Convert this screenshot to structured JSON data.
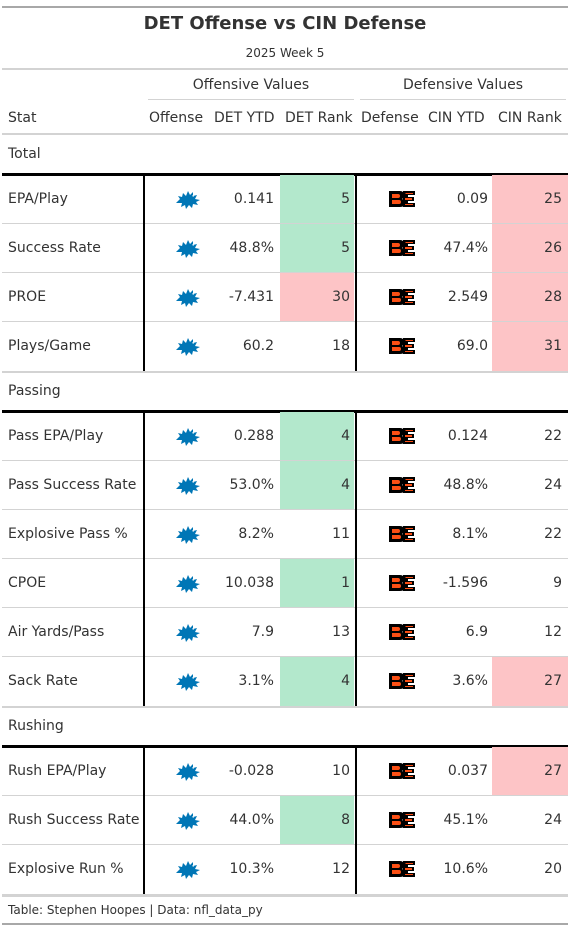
{
  "header": {
    "title": "DET Offense vs CIN Defense",
    "subtitle": "2025 Week 5"
  },
  "spanners": {
    "offense": "Offensive Values",
    "defense": "Defensive Values"
  },
  "columns": {
    "stat": "Stat",
    "offense": "Offense",
    "det_ytd": "DET YTD",
    "det_rank": "DET Rank",
    "defense": "Defense",
    "cin_ytd": "CIN YTD",
    "cin_rank": "CIN Rank"
  },
  "colors": {
    "good": "#b3e8cc",
    "bad": "#fdc4c6",
    "lions_blue": "#0076b6",
    "bengals_orange": "#fb4f14"
  },
  "icons": {
    "offense_logo": "lions-logo-icon",
    "defense_logo": "bengals-logo-icon"
  },
  "groups": [
    {
      "label": "Total",
      "rows": [
        {
          "stat": "EPA/Play",
          "det_ytd": "0.141",
          "det_rank": "5",
          "det_shade": "good",
          "cin_ytd": "0.09",
          "cin_rank": "25",
          "cin_shade": "bad"
        },
        {
          "stat": "Success Rate",
          "det_ytd": "48.8%",
          "det_rank": "5",
          "det_shade": "good",
          "cin_ytd": "47.4%",
          "cin_rank": "26",
          "cin_shade": "bad"
        },
        {
          "stat": "PROE",
          "det_ytd": "-7.431",
          "det_rank": "30",
          "det_shade": "bad",
          "cin_ytd": "2.549",
          "cin_rank": "28",
          "cin_shade": "bad"
        },
        {
          "stat": "Plays/Game",
          "det_ytd": "60.2",
          "det_rank": "18",
          "det_shade": "",
          "cin_ytd": "69.0",
          "cin_rank": "31",
          "cin_shade": "bad"
        }
      ]
    },
    {
      "label": "Passing",
      "rows": [
        {
          "stat": "Pass EPA/Play",
          "det_ytd": "0.288",
          "det_rank": "4",
          "det_shade": "good",
          "cin_ytd": "0.124",
          "cin_rank": "22",
          "cin_shade": ""
        },
        {
          "stat": "Pass Success Rate",
          "det_ytd": "53.0%",
          "det_rank": "4",
          "det_shade": "good",
          "cin_ytd": "48.8%",
          "cin_rank": "24",
          "cin_shade": ""
        },
        {
          "stat": "Explosive Pass %",
          "det_ytd": "8.2%",
          "det_rank": "11",
          "det_shade": "",
          "cin_ytd": "8.1%",
          "cin_rank": "22",
          "cin_shade": ""
        },
        {
          "stat": "CPOE",
          "det_ytd": "10.038",
          "det_rank": "1",
          "det_shade": "good",
          "cin_ytd": "-1.596",
          "cin_rank": "9",
          "cin_shade": ""
        },
        {
          "stat": "Air Yards/Pass",
          "det_ytd": "7.9",
          "det_rank": "13",
          "det_shade": "",
          "cin_ytd": "6.9",
          "cin_rank": "12",
          "cin_shade": ""
        },
        {
          "stat": "Sack Rate",
          "det_ytd": "3.1%",
          "det_rank": "4",
          "det_shade": "good",
          "cin_ytd": "3.6%",
          "cin_rank": "27",
          "cin_shade": "bad"
        }
      ]
    },
    {
      "label": "Rushing",
      "rows": [
        {
          "stat": "Rush EPA/Play",
          "det_ytd": "-0.028",
          "det_rank": "10",
          "det_shade": "",
          "cin_ytd": "0.037",
          "cin_rank": "27",
          "cin_shade": "bad"
        },
        {
          "stat": "Rush Success Rate",
          "det_ytd": "44.0%",
          "det_rank": "8",
          "det_shade": "good",
          "cin_ytd": "45.1%",
          "cin_rank": "24",
          "cin_shade": ""
        },
        {
          "stat": "Explosive Run %",
          "det_ytd": "10.3%",
          "det_rank": "12",
          "det_shade": "",
          "cin_ytd": "10.6%",
          "cin_rank": "20",
          "cin_shade": ""
        }
      ]
    }
  ],
  "footer": {
    "source": "Table: Stephen Hoopes | Data: nfl_data_py"
  }
}
